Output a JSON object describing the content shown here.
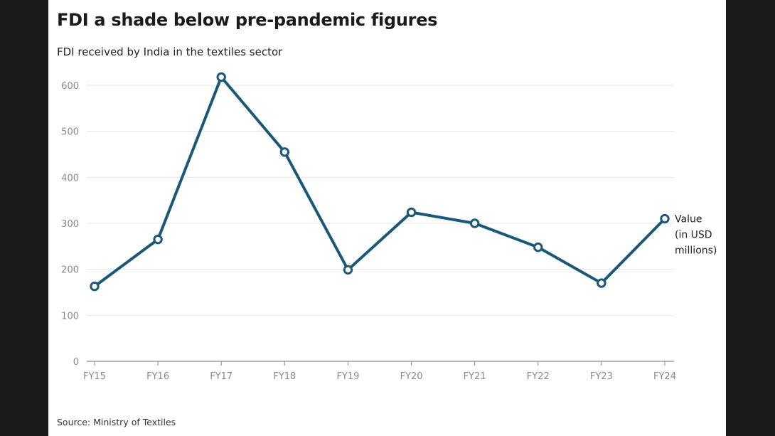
{
  "header": {
    "title": "FDI a shade below pre-pandemic figures",
    "subtitle": "FDI received by India in the textiles sector"
  },
  "footer": {
    "source": "Source: Ministry of Textiles"
  },
  "colors": {
    "line": "#1a5878",
    "grid": "#e6e6e6",
    "axis": "#8a8a8a"
  },
  "chart_data": {
    "type": "line",
    "title": "FDI a shade below pre-pandemic figures",
    "subtitle": "FDI received by India in the textiles sector",
    "categories": [
      "FY15",
      "FY16",
      "FY17",
      "FY18",
      "FY19",
      "FY20",
      "FY21",
      "FY22",
      "FY23",
      "FY24"
    ],
    "series": [
      {
        "name": "Value (in USD millions)",
        "label_lines": [
          "Value",
          "(in USD",
          "millions)"
        ],
        "values": [
          163,
          265,
          618,
          455,
          199,
          324,
          300,
          248,
          170,
          310
        ]
      }
    ],
    "yticks": [
      0,
      100,
      200,
      300,
      400,
      500,
      600
    ],
    "ylim": [
      0,
      620
    ],
    "grid": true,
    "xlabel": "",
    "ylabel": ""
  }
}
